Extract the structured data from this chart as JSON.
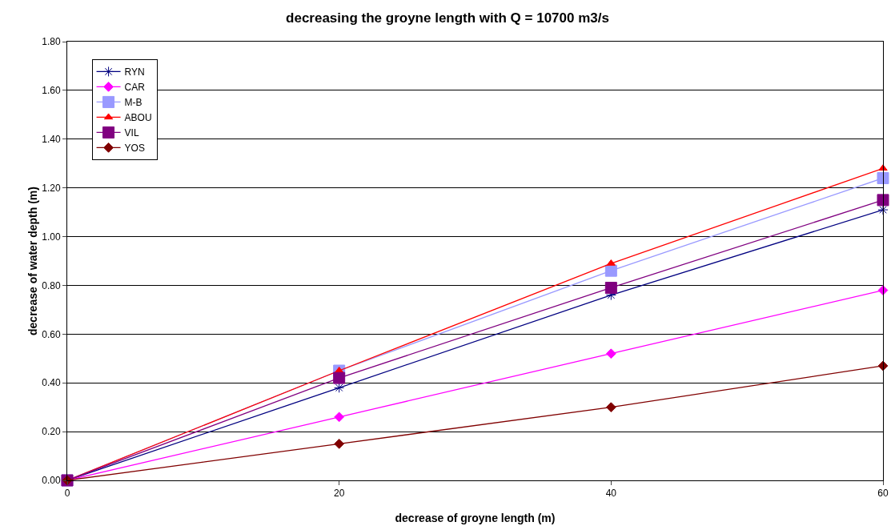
{
  "chart_data": {
    "type": "line",
    "title": "decreasing the groyne length with Q = 10700 m3/s",
    "xlabel": "decrease of groyne length (m)",
    "ylabel": "decrease of water depth (m)",
    "x": [
      0,
      20,
      40,
      60
    ],
    "series": [
      {
        "name": "RYN",
        "color": "#000080",
        "marker": "cross",
        "values": [
          0,
          0.38,
          0.76,
          1.11
        ]
      },
      {
        "name": "CAR",
        "color": "#ff00ff",
        "marker": "diamond",
        "values": [
          0,
          0.26,
          0.52,
          0.78
        ]
      },
      {
        "name": "M-B",
        "color": "#9999ff",
        "marker": "square",
        "values": [
          0,
          0.45,
          0.86,
          1.24
        ]
      },
      {
        "name": "ABOU",
        "color": "#ff0000",
        "marker": "triangle",
        "values": [
          0,
          0.45,
          0.89,
          1.28
        ]
      },
      {
        "name": "VIL",
        "color": "#800080",
        "marker": "square",
        "values": [
          0,
          0.42,
          0.79,
          1.15
        ]
      },
      {
        "name": "YOS",
        "color": "#800000",
        "marker": "diamond",
        "values": [
          0,
          0.15,
          0.3,
          0.47
        ]
      }
    ],
    "xlim": [
      0,
      60
    ],
    "xticks": [
      0,
      20,
      40,
      60
    ],
    "ylim": [
      0,
      1.8
    ],
    "yticks": [
      {
        "value": 0,
        "label": "0.00"
      },
      {
        "value": 0.2,
        "label": "0.20"
      },
      {
        "value": 0.4,
        "label": "0.40"
      },
      {
        "value": 0.6,
        "label": "0.60"
      },
      {
        "value": 0.8,
        "label": "0.80"
      },
      {
        "value": 1,
        "label": "1.00"
      },
      {
        "value": 1.2,
        "label": "1.20"
      },
      {
        "value": 1.4,
        "label": "1.40"
      },
      {
        "value": 1.6,
        "label": "1.60"
      },
      {
        "value": 1.8,
        "label": "1.80"
      }
    ],
    "grid": "y",
    "legend": "top left"
  }
}
